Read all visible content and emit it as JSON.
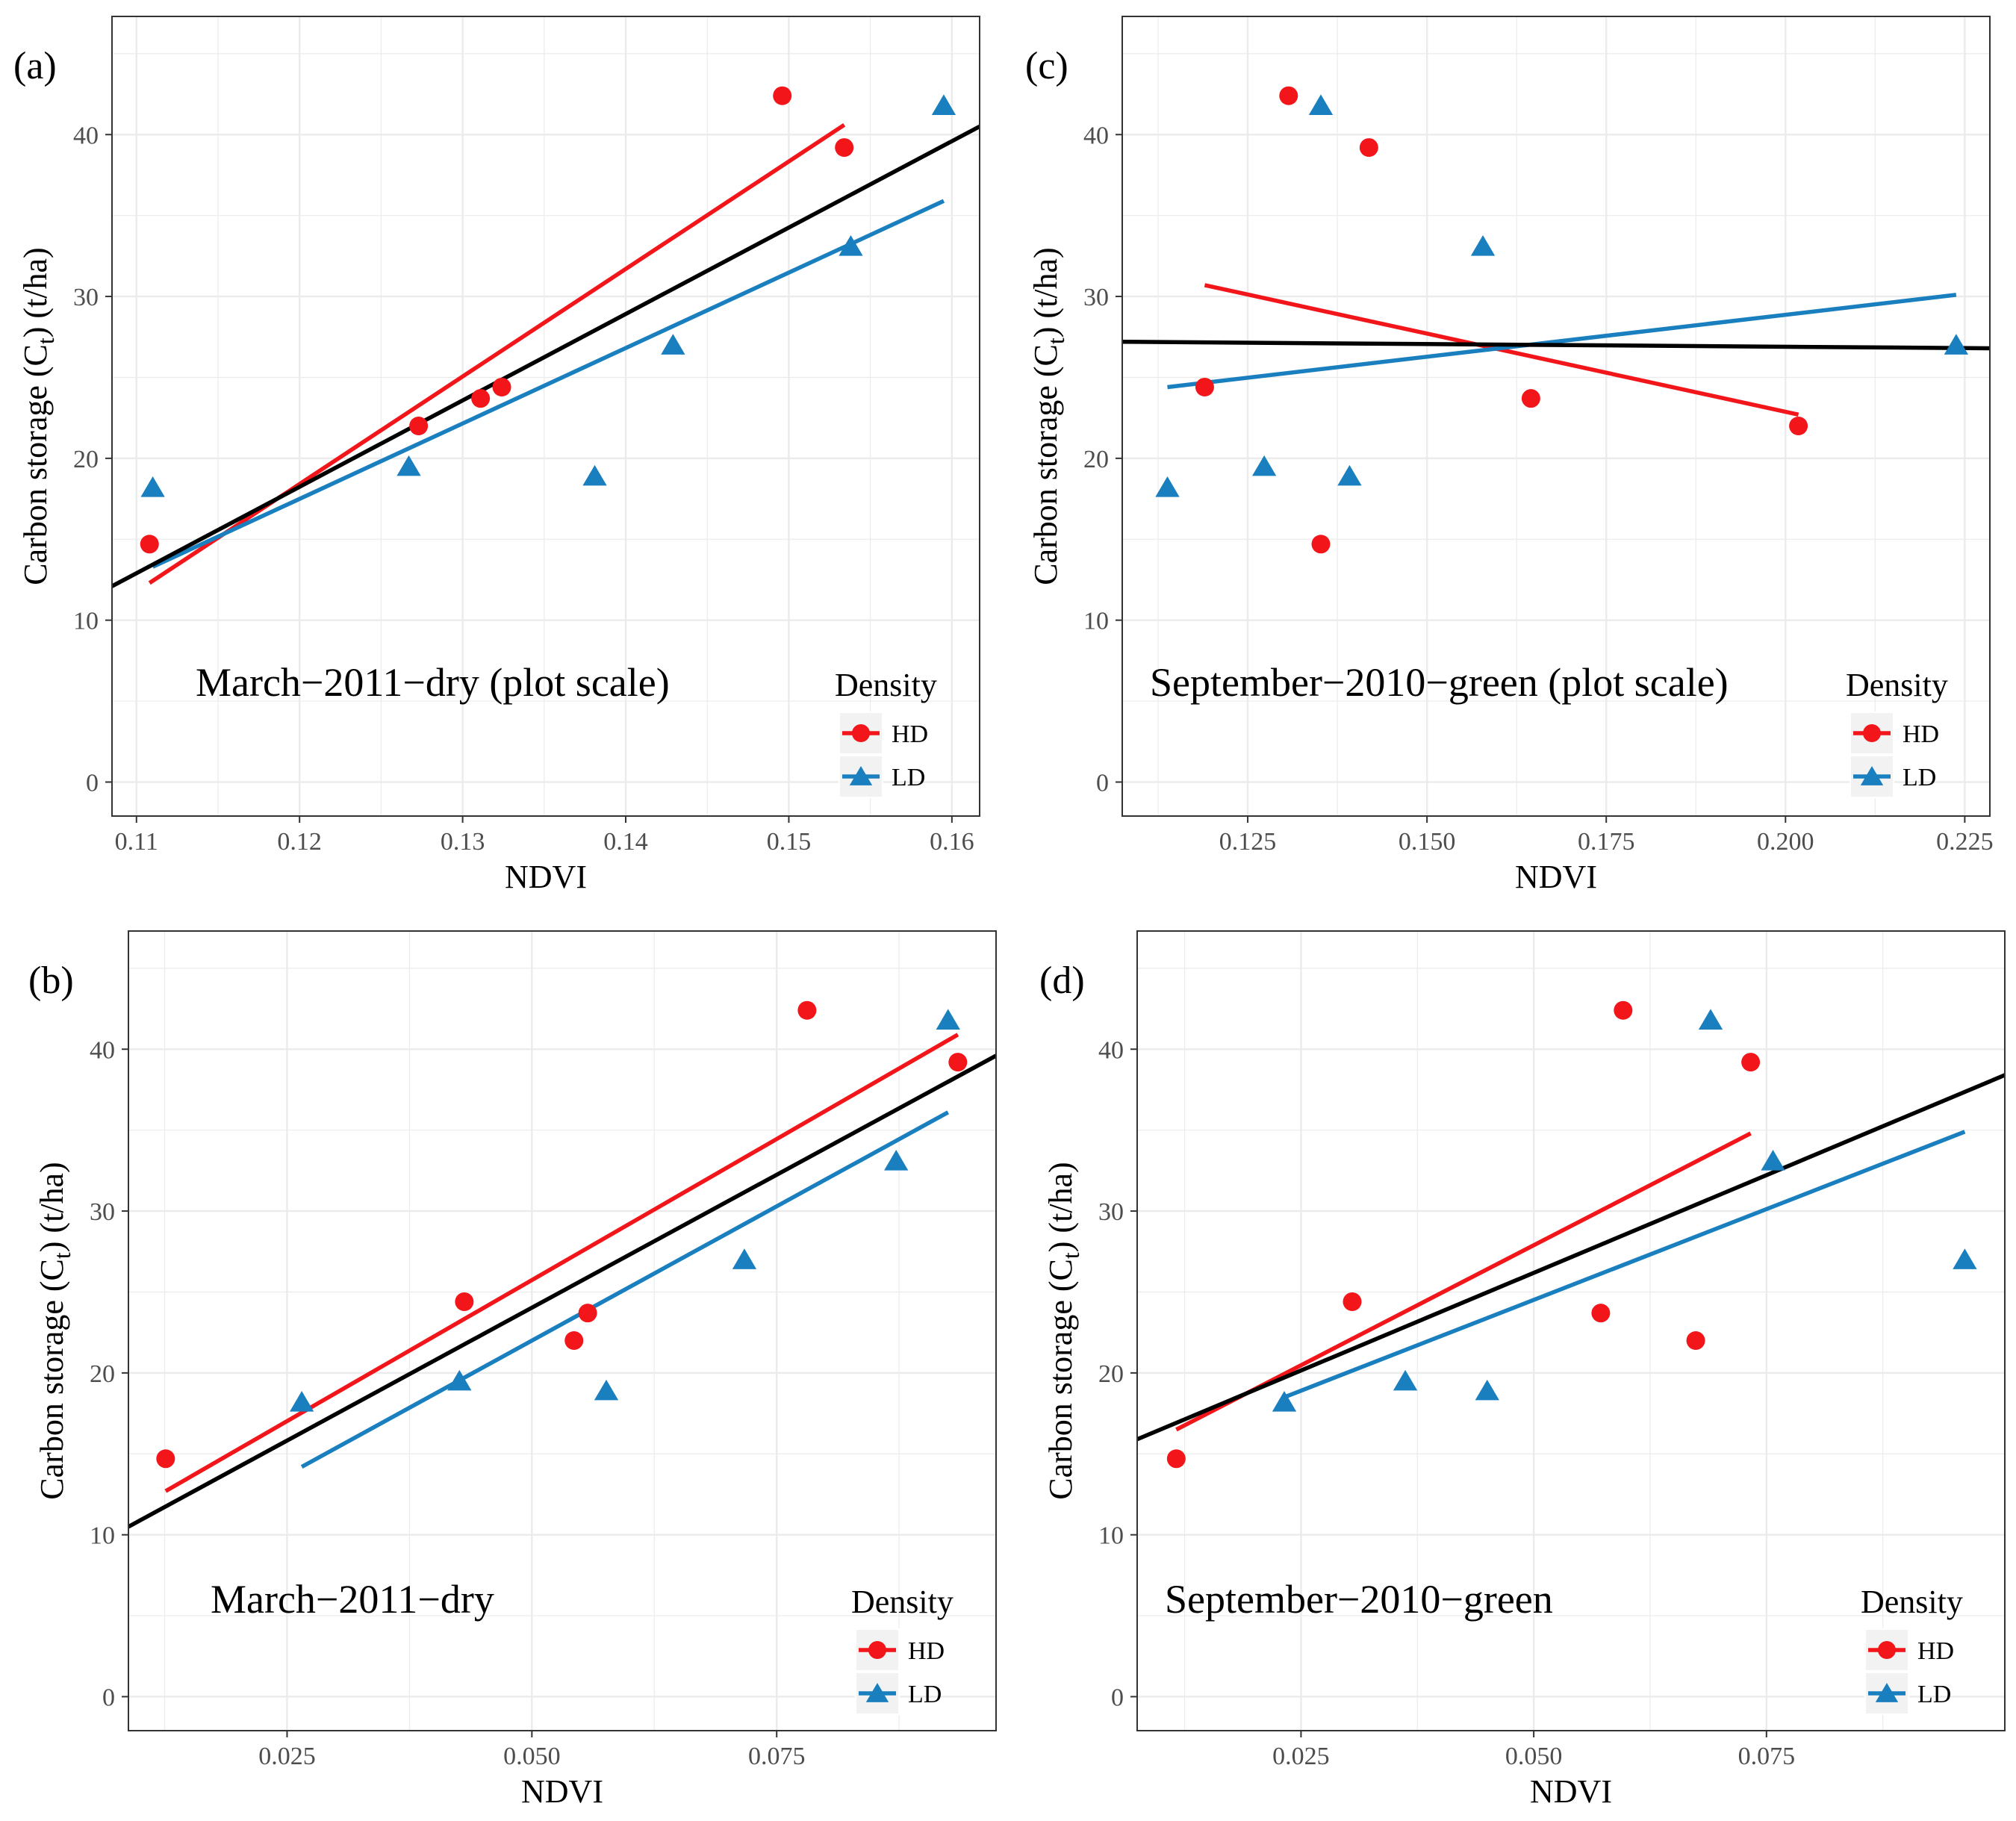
{
  "colors": {
    "HD": "#f2151a",
    "LD": "#1a7fbf",
    "overall": "#000000",
    "grid": "#ebebeb",
    "frame": "#333333"
  },
  "legend": {
    "title": "Density",
    "items": [
      "HD",
      "LD"
    ]
  },
  "chart_data": [
    {
      "tag": "(a)",
      "type": "scatter",
      "title": "March−2011−dry (plot scale)",
      "xlabel": "NDVI",
      "ylabel": "Carbon storage (C",
      "ylabel_sub": "t",
      "ylabel_end": ") (t/ha)",
      "xlim": [
        0.1085,
        0.1617
      ],
      "ylim": [
        -2.1,
        47.3
      ],
      "xticks": [
        0.11,
        0.12,
        0.13,
        0.14,
        0.15,
        0.16
      ],
      "xtick_labels": [
        "0.11",
        "0.12",
        "0.13",
        "0.14",
        "0.15",
        "0.16"
      ],
      "yticks": [
        0,
        10,
        20,
        30,
        40
      ],
      "ytick_labels": [
        "0",
        "10",
        "20",
        "30",
        "40"
      ],
      "series": [
        {
          "name": "HD",
          "marker": "circle",
          "x": [
            0.1108,
            0.1273,
            0.1311,
            0.1324,
            0.1496,
            0.1534
          ],
          "y": [
            14.7,
            22.0,
            23.7,
            24.4,
            42.4,
            39.2
          ]
        },
        {
          "name": "LD",
          "marker": "triangle",
          "x": [
            0.111,
            0.1267,
            0.1381,
            0.1429,
            0.1538,
            0.1595
          ],
          "y": [
            18.1,
            19.4,
            18.8,
            26.9,
            33.0,
            41.7
          ]
        }
      ],
      "fits": [
        {
          "name": "HD",
          "x": [
            0.1108,
            0.1534
          ],
          "y": [
            12.3,
            40.6
          ]
        },
        {
          "name": "LD",
          "x": [
            0.111,
            0.1595
          ],
          "y": [
            13.3,
            35.9
          ]
        },
        {
          "name": "overall",
          "x": [
            0.1085,
            0.1617
          ],
          "y": [
            12.1,
            40.5
          ]
        }
      ]
    },
    {
      "tag": "(c)",
      "type": "scatter",
      "title": "September−2010−green (plot scale)",
      "xlabel": "NDVI",
      "ylabel": "Carbon storage (C",
      "ylabel_sub": "t",
      "ylabel_end": ") (t/ha)",
      "xlim": [
        0.1075,
        0.2285
      ],
      "ylim": [
        -2.1,
        47.3
      ],
      "xticks": [
        0.125,
        0.15,
        0.175,
        0.2,
        0.225
      ],
      "xtick_labels": [
        "0.125",
        "0.150",
        "0.175",
        "0.200",
        "0.225"
      ],
      "yticks": [
        0,
        10,
        20,
        30,
        40
      ],
      "ytick_labels": [
        "0",
        "10",
        "20",
        "30",
        "40"
      ],
      "series": [
        {
          "name": "HD",
          "marker": "circle",
          "x": [
            0.119,
            0.1307,
            0.1352,
            0.1419,
            0.1645,
            0.2018
          ],
          "y": [
            24.4,
            42.4,
            14.7,
            39.2,
            23.7,
            22.0
          ]
        },
        {
          "name": "LD",
          "marker": "triangle",
          "x": [
            0.1138,
            0.1273,
            0.1352,
            0.1392,
            0.1578,
            0.2238
          ],
          "y": [
            18.1,
            19.4,
            41.7,
            18.8,
            33.0,
            26.9
          ]
        }
      ],
      "fits": [
        {
          "name": "HD",
          "x": [
            0.119,
            0.2018
          ],
          "y": [
            30.7,
            22.7
          ]
        },
        {
          "name": "LD",
          "x": [
            0.1138,
            0.2238
          ],
          "y": [
            24.4,
            30.1
          ]
        },
        {
          "name": "overall",
          "x": [
            0.1075,
            0.2285
          ],
          "y": [
            27.2,
            26.8
          ]
        }
      ]
    },
    {
      "tag": "(b)",
      "type": "scatter",
      "title": "March−2011−dry",
      "xlabel": "NDVI",
      "ylabel": "Carbon storage (C",
      "ylabel_sub": "t",
      "ylabel_end": ") (t/ha)",
      "xlim": [
        0.0088,
        0.0974
      ],
      "ylim": [
        -2.1,
        47.3
      ],
      "xticks": [
        0.025,
        0.05,
        0.075
      ],
      "xtick_labels": [
        "0.025",
        "0.050",
        "0.075"
      ],
      "yticks": [
        0,
        10,
        20,
        30,
        40
      ],
      "ytick_labels": [
        "0",
        "10",
        "20",
        "30",
        "40"
      ],
      "series": [
        {
          "name": "HD",
          "marker": "circle",
          "x": [
            0.0126,
            0.0431,
            0.0543,
            0.0557,
            0.0781,
            0.0935
          ],
          "y": [
            14.7,
            24.4,
            22.0,
            23.7,
            42.4,
            39.2
          ]
        },
        {
          "name": "LD",
          "marker": "triangle",
          "x": [
            0.0265,
            0.0426,
            0.0576,
            0.0717,
            0.0872,
            0.0925
          ],
          "y": [
            18.1,
            19.4,
            18.8,
            26.9,
            33.0,
            41.7
          ]
        }
      ],
      "fits": [
        {
          "name": "HD",
          "x": [
            0.0126,
            0.0935
          ],
          "y": [
            12.7,
            40.9
          ]
        },
        {
          "name": "LD",
          "x": [
            0.0265,
            0.0925
          ],
          "y": [
            14.2,
            36.1
          ]
        },
        {
          "name": "overall",
          "x": [
            0.0088,
            0.0974
          ],
          "y": [
            10.5,
            39.6
          ]
        }
      ]
    },
    {
      "tag": "(d)",
      "type": "scatter",
      "title": "September−2010−green",
      "xlabel": "NDVI",
      "ylabel": "Carbon storage (C",
      "ylabel_sub": "t",
      "ylabel_end": ") (t/ha)",
      "xlim": [
        0.0074,
        0.1006
      ],
      "ylim": [
        -2.1,
        47.3
      ],
      "xticks": [
        0.025,
        0.05,
        0.075
      ],
      "xtick_labels": [
        "0.025",
        "0.050",
        "0.075"
      ],
      "yticks": [
        0,
        10,
        20,
        30,
        40
      ],
      "ytick_labels": [
        "0",
        "10",
        "20",
        "30",
        "40"
      ],
      "series": [
        {
          "name": "HD",
          "marker": "circle",
          "x": [
            0.0116,
            0.0305,
            0.0572,
            0.0596,
            0.0674,
            0.0733
          ],
          "y": [
            14.7,
            24.4,
            23.7,
            42.4,
            22.0,
            39.2
          ]
        },
        {
          "name": "LD",
          "marker": "triangle",
          "x": [
            0.0232,
            0.0362,
            0.045,
            0.069,
            0.0757,
            0.0963
          ],
          "y": [
            18.1,
            19.4,
            18.8,
            41.7,
            33.0,
            26.9
          ]
        }
      ],
      "fits": [
        {
          "name": "HD",
          "x": [
            0.0116,
            0.0733
          ],
          "y": [
            16.5,
            34.8
          ]
        },
        {
          "name": "LD",
          "x": [
            0.0232,
            0.0963
          ],
          "y": [
            18.5,
            34.9
          ]
        },
        {
          "name": "overall",
          "x": [
            0.0074,
            0.1006
          ],
          "y": [
            15.9,
            38.4
          ]
        }
      ]
    }
  ]
}
